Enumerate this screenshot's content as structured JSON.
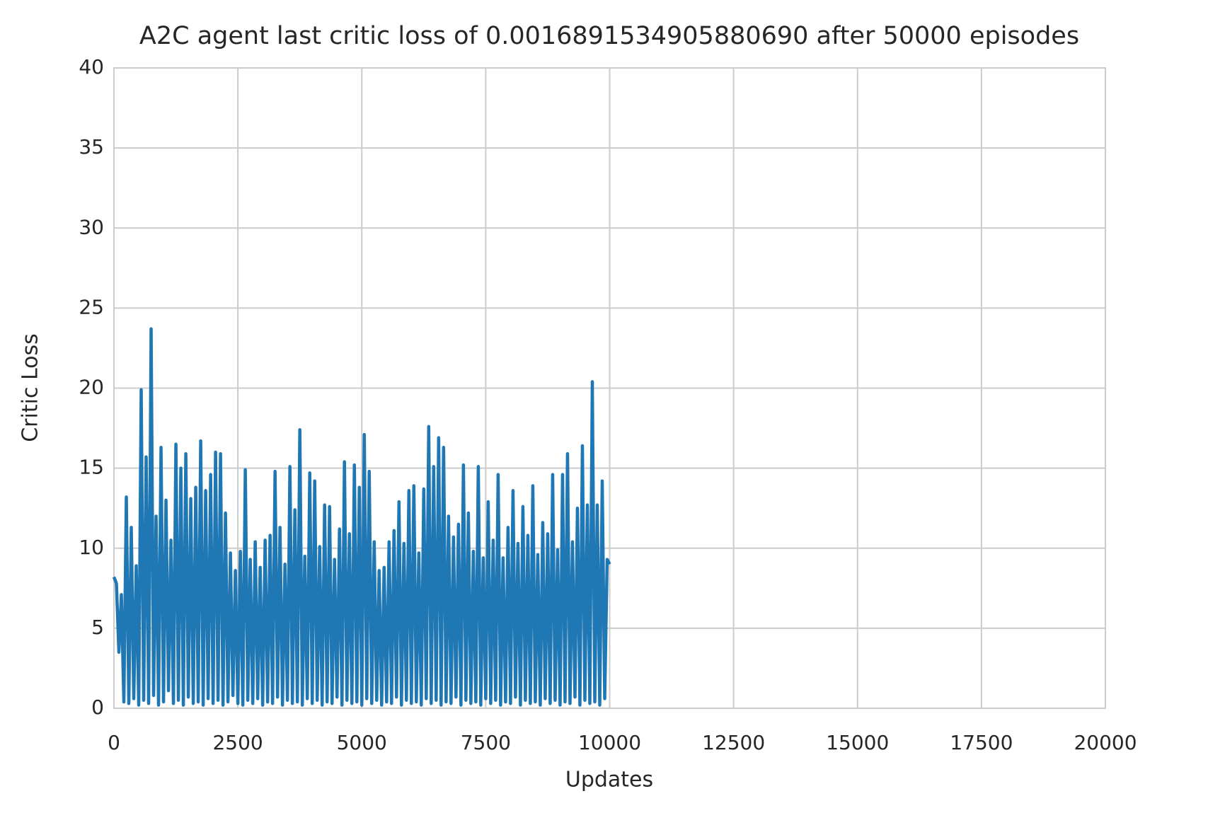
{
  "chart_data": {
    "type": "line",
    "title": "A2C agent last critic loss of 0.0016891534905880690 after 50000 episodes",
    "xlabel": "Updates",
    "ylabel": "Critic Loss",
    "xlim": [
      0,
      20000
    ],
    "xticks": [
      0,
      2500,
      5000,
      7500,
      10000,
      12500,
      15000,
      17500,
      20000
    ],
    "ylim": [
      0,
      40
    ],
    "yticks": [
      0,
      5,
      10,
      15,
      20,
      25,
      30,
      35,
      40
    ],
    "grid": true,
    "x": [
      0,
      50,
      100,
      150,
      200,
      250,
      300,
      350,
      400,
      450,
      500,
      550,
      600,
      650,
      700,
      750,
      800,
      850,
      900,
      950,
      1000,
      1050,
      1100,
      1150,
      1200,
      1250,
      1300,
      1350,
      1400,
      1450,
      1500,
      1550,
      1600,
      1650,
      1700,
      1750,
      1800,
      1850,
      1900,
      1950,
      2000,
      2050,
      2100,
      2150,
      2200,
      2250,
      2300,
      2350,
      2400,
      2450,
      2500,
      2550,
      2600,
      2650,
      2700,
      2750,
      2800,
      2850,
      2900,
      2950,
      3000,
      3050,
      3100,
      3150,
      3200,
      3250,
      3300,
      3350,
      3400,
      3450,
      3500,
      3550,
      3600,
      3650,
      3700,
      3750,
      3800,
      3850,
      3900,
      3950,
      4000,
      4050,
      4100,
      4150,
      4200,
      4250,
      4300,
      4350,
      4400,
      4450,
      4500,
      4550,
      4600,
      4650,
      4700,
      4750,
      4800,
      4850,
      4900,
      4950,
      5000,
      5050,
      5100,
      5150,
      5200,
      5250,
      5300,
      5350,
      5400,
      5450,
      5500,
      5550,
      5600,
      5650,
      5700,
      5750,
      5800,
      5850,
      5900,
      5950,
      6000,
      6050,
      6100,
      6150,
      6200,
      6250,
      6300,
      6350,
      6400,
      6450,
      6500,
      6550,
      6600,
      6650,
      6700,
      6750,
      6800,
      6850,
      6900,
      6950,
      7000,
      7050,
      7100,
      7150,
      7200,
      7250,
      7300,
      7350,
      7400,
      7450,
      7500,
      7550,
      7600,
      7650,
      7700,
      7750,
      7800,
      7850,
      7900,
      7950,
      8000,
      8050,
      8100,
      8150,
      8200,
      8250,
      8300,
      8350,
      8400,
      8450,
      8500,
      8550,
      8600,
      8650,
      8700,
      8750,
      8800,
      8850,
      8900,
      8950,
      9000,
      9050,
      9100,
      9150,
      9200,
      9250,
      9300,
      9350,
      9400,
      9450,
      9500,
      9550,
      9600,
      9650,
      9700,
      9750,
      9800,
      9850,
      9900,
      9950,
      10000
    ],
    "series": [
      {
        "name": "critic loss",
        "color": "#1f77b4",
        "values": [
          8.2,
          7.8,
          3.5,
          7.1,
          0.4,
          13.2,
          0.3,
          11.3,
          0.6,
          8.9,
          0.2,
          19.9,
          0.5,
          15.7,
          0.3,
          23.7,
          0.8,
          12.0,
          0.2,
          16.3,
          0.4,
          13.0,
          1.1,
          10.5,
          0.3,
          16.5,
          0.5,
          15.0,
          0.2,
          15.9,
          0.7,
          13.1,
          0.3,
          13.8,
          0.4,
          16.7,
          0.2,
          13.6,
          0.6,
          14.6,
          0.3,
          16.0,
          0.5,
          15.9,
          0.2,
          12.2,
          0.4,
          9.7,
          0.8,
          8.6,
          0.3,
          9.8,
          0.2,
          14.9,
          0.5,
          9.3,
          0.3,
          10.4,
          0.6,
          8.8,
          0.2,
          10.5,
          0.4,
          10.8,
          0.3,
          14.8,
          0.7,
          11.3,
          0.2,
          9.0,
          0.5,
          15.1,
          0.3,
          12.4,
          0.4,
          17.4,
          0.2,
          9.5,
          0.6,
          14.7,
          0.3,
          14.2,
          0.5,
          10.1,
          0.2,
          12.7,
          0.4,
          12.6,
          0.3,
          9.3,
          0.7,
          11.2,
          0.2,
          15.4,
          0.5,
          10.9,
          0.3,
          15.2,
          0.4,
          13.8,
          0.2,
          17.1,
          0.6,
          14.8,
          0.3,
          10.4,
          0.5,
          8.6,
          0.2,
          8.8,
          0.4,
          10.4,
          0.3,
          11.1,
          0.7,
          12.9,
          0.2,
          10.3,
          0.5,
          13.6,
          0.3,
          13.9,
          0.4,
          9.7,
          0.2,
          13.7,
          0.6,
          17.6,
          0.3,
          15.1,
          0.5,
          16.9,
          0.2,
          16.3,
          0.4,
          12.0,
          0.3,
          10.7,
          0.7,
          11.5,
          0.2,
          15.2,
          0.5,
          12.2,
          0.3,
          9.8,
          0.4,
          15.1,
          0.2,
          9.4,
          0.6,
          12.9,
          0.3,
          10.5,
          0.5,
          14.6,
          0.2,
          9.4,
          0.4,
          11.3,
          0.3,
          13.6,
          0.7,
          10.3,
          0.2,
          12.6,
          0.5,
          10.8,
          0.3,
          13.9,
          0.4,
          9.6,
          0.2,
          11.6,
          0.6,
          10.9,
          0.3,
          14.6,
          0.5,
          9.9,
          0.2,
          14.6,
          0.4,
          15.9,
          0.3,
          10.4,
          0.7,
          12.5,
          0.2,
          16.4,
          0.5,
          12.7,
          0.3,
          20.4,
          0.4,
          12.7,
          0.2,
          14.2,
          0.6,
          9.3,
          9.0
        ]
      }
    ]
  }
}
